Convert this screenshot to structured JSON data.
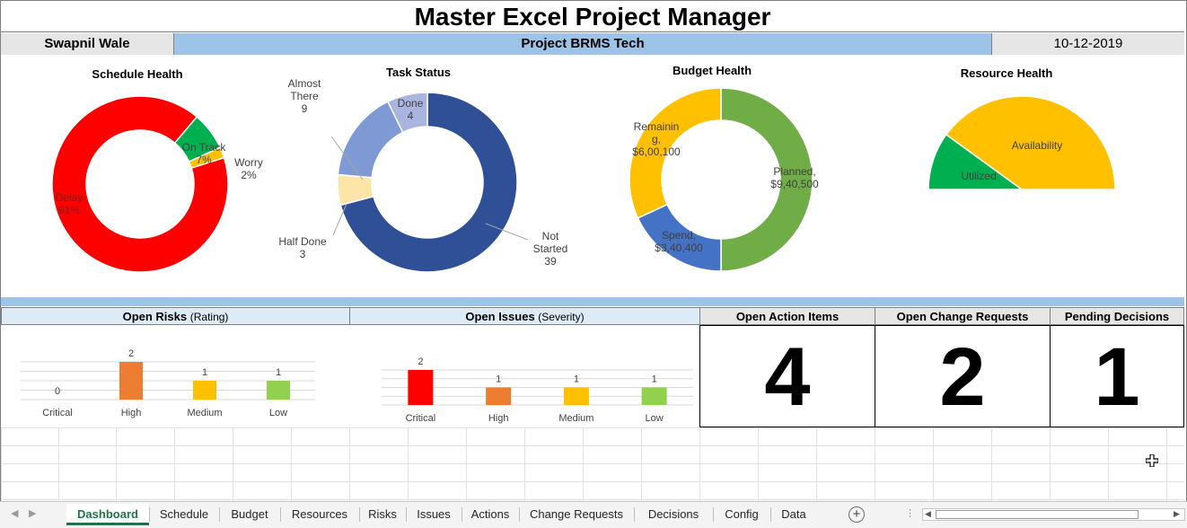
{
  "header": {
    "title": "Master Excel Project Manager",
    "owner": "Swapnil Wale",
    "project": "Project BRMS Tech",
    "date": "10-12-2019"
  },
  "colors": {
    "header_blue": "#9dc3e6",
    "light_blue": "#ddebf7",
    "light_gray": "#e7e6e6",
    "excel_green": "#217346",
    "red": "#ff0000",
    "orange": "#ed7d31",
    "amber": "#ffc000",
    "green_light": "#92d050",
    "green": "#00b050"
  },
  "chart_data": [
    {
      "type": "pie",
      "title": "Schedule Health",
      "donut": true,
      "labels": [
        "Delay",
        "On Track",
        "Worry"
      ],
      "values": [
        91,
        7,
        2
      ],
      "display": [
        "Delay\n91%",
        "On Track\n7%",
        "Worry\n2%"
      ],
      "colors": [
        "#ff0000",
        "#00b050",
        "#ffc000"
      ]
    },
    {
      "type": "pie",
      "title": "Task Status",
      "donut": true,
      "labels": [
        "Not Started",
        "Half Done",
        "Almost There",
        "Done"
      ],
      "values": [
        39,
        3,
        9,
        4
      ],
      "display": [
        "Not\nStarted\n39",
        "Half Done\n3",
        "Almost\nThere\n9",
        "Done\n4"
      ],
      "colors": [
        "#2f4f96",
        "#fce5a7",
        "#7f99d4",
        "#aab5df"
      ]
    },
    {
      "type": "pie",
      "title": "Budget Health",
      "donut": true,
      "labels": [
        "Planned",
        "Spend",
        "Remaining"
      ],
      "values": [
        940500,
        340400,
        600100
      ],
      "display": [
        "Planned,\n$9,40,500",
        "Spend,\n$3,40,400",
        "Remainin\ng,\n$6,00,100"
      ],
      "colors": [
        "#70ad47",
        "#4472c4",
        "#ffc000"
      ]
    },
    {
      "type": "pie",
      "title": "Resource Health",
      "half_gauge": true,
      "labels": [
        "Utilized",
        "Availability"
      ],
      "values": [
        20,
        80
      ],
      "colors": [
        "#00b050",
        "#ffc000"
      ]
    },
    {
      "type": "bar",
      "title": "Open Risks",
      "subtitle": "(Rating)",
      "categories": [
        "Critical",
        "High",
        "Medium",
        "Low"
      ],
      "values": [
        0,
        2,
        1,
        1
      ],
      "colors": [
        "#ff0000",
        "#ed7d31",
        "#ffc000",
        "#92d050"
      ],
      "ylim": [
        0,
        2
      ]
    },
    {
      "type": "bar",
      "title": "Open Issues",
      "subtitle": "(Severity)",
      "categories": [
        "Critical",
        "High",
        "Medium",
        "Low"
      ],
      "values": [
        2,
        1,
        1,
        1
      ],
      "colors": [
        "#ff0000",
        "#ed7d31",
        "#ffc000",
        "#92d050"
      ],
      "ylim": [
        0,
        2
      ]
    }
  ],
  "kpis": [
    {
      "label": "Open Action Items",
      "value": "4",
      "color": "#f4696b"
    },
    {
      "label": "Open Change Requests",
      "value": "2",
      "color": "#ffeb84"
    },
    {
      "label": "Pending Decisions",
      "value": "1",
      "color": "#63be7b"
    }
  ],
  "sheet_tabs": [
    "Dashboard",
    "Schedule",
    "Budget",
    "Resources",
    "Risks",
    "Issues",
    "Actions",
    "Change Requests",
    "Decisions",
    "Config",
    "Data"
  ],
  "active_tab": "Dashboard",
  "icons": {
    "add_sheet": "plus-circle-icon",
    "cursor": "cell-cursor-icon"
  }
}
